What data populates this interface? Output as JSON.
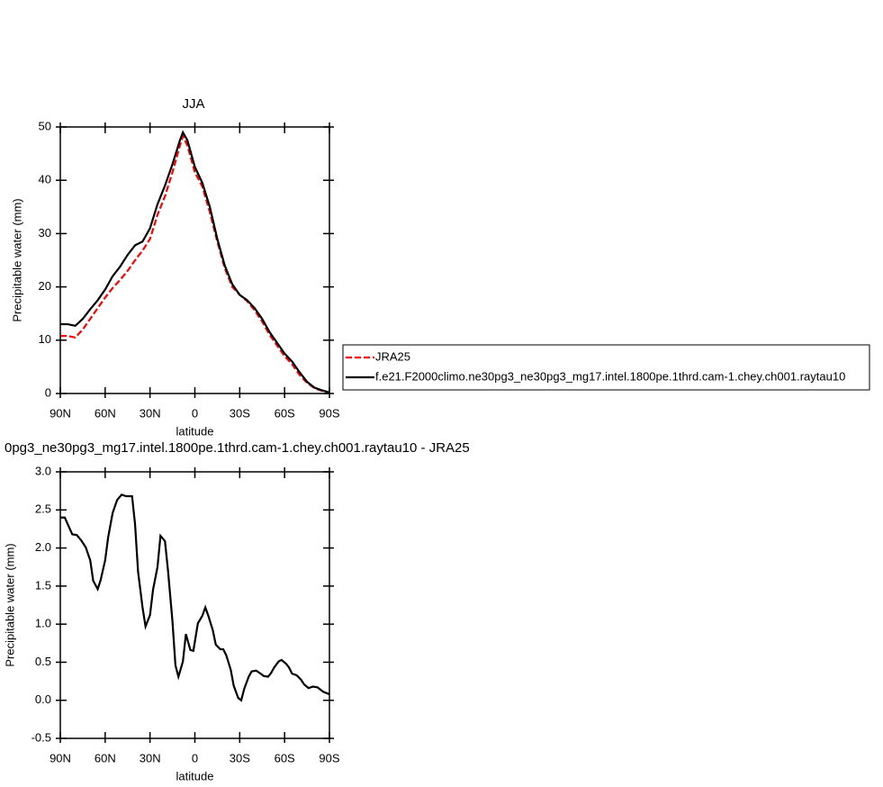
{
  "chart_data": [
    {
      "type": "line",
      "title": "JJA",
      "x_label": "latitude",
      "y_label": "Precipitable water (mm)",
      "x": [
        90,
        85,
        80,
        75,
        70,
        65,
        60,
        55,
        50,
        45,
        40,
        35,
        30,
        25,
        20,
        15,
        10,
        8,
        5,
        0,
        -5,
        -10,
        -15,
        -20,
        -25,
        -30,
        -35,
        -40,
        -45,
        -50,
        -55,
        -60,
        -65,
        -70,
        -75,
        -80,
        -85,
        -90
      ],
      "series": [
        {
          "name": "JRA25",
          "color": "#ff0000",
          "style": "dashed",
          "values": [
            10.8,
            10.8,
            10.5,
            12,
            14,
            16,
            18,
            19.8,
            21.3,
            23,
            25,
            26.8,
            29,
            33.5,
            37,
            41.5,
            46.5,
            48.3,
            46.5,
            41.5,
            38.8,
            34,
            28.5,
            23.5,
            20,
            18.5,
            17.3,
            15.6,
            13.5,
            11,
            9,
            7,
            5.5,
            3.5,
            2,
            1,
            0.5,
            0.1
          ]
        },
        {
          "name": "f.e21.F2000climo.ne30pg3_ne30pg3_mg17.intel.1800pe.1thrd.cam-1.chey.ch001.raytau10",
          "color": "#000000",
          "style": "solid",
          "values": [
            13,
            13,
            12.7,
            14,
            15.8,
            17.5,
            19.5,
            22,
            23.8,
            26,
            27.8,
            28.5,
            31,
            35.5,
            39,
            43,
            47.5,
            49,
            47.5,
            42.5,
            39.5,
            35,
            29,
            24,
            20.5,
            18.5,
            17.5,
            16,
            14,
            11.5,
            9.5,
            7.5,
            6,
            4,
            2.2,
            1.1,
            0.6,
            0.2
          ]
        }
      ],
      "xlim": [
        90,
        -90
      ],
      "xticks": [
        {
          "value": 90,
          "label": "90N"
        },
        {
          "value": 60,
          "label": "60N"
        },
        {
          "value": 30,
          "label": "30N"
        },
        0,
        {
          "value": -30,
          "label": "30S"
        },
        {
          "value": -60,
          "label": "60S"
        },
        {
          "value": -90,
          "label": "90S"
        }
      ],
      "ylim": [
        0,
        50
      ],
      "yticks": [
        0,
        10,
        20,
        30,
        40,
        50
      ],
      "legend": "right"
    },
    {
      "type": "line",
      "title": "0pg3_ne30pg3_mg17.intel.1800pe.1thrd.cam-1.chey.ch001.raytau10 - JRA25",
      "x_label": "latitude",
      "y_label": "Precipitable water (mm)",
      "x": [
        90,
        87,
        85,
        82,
        79,
        76,
        73,
        70,
        68,
        65,
        63,
        60,
        58,
        55,
        52,
        49,
        46,
        42,
        40,
        38,
        35,
        33,
        30,
        28,
        25,
        23,
        20,
        18,
        15,
        13,
        11,
        8,
        6,
        3,
        1,
        -2,
        -5,
        -7,
        -9,
        -12,
        -14,
        -17,
        -19,
        -21,
        -24,
        -26,
        -29,
        -31,
        -33,
        -36,
        -38,
        -41,
        -44,
        -46,
        -49,
        -51,
        -53,
        -56,
        -58,
        -61,
        -63,
        -65,
        -68,
        -71,
        -73,
        -76,
        -79,
        -82,
        -84,
        -86,
        -90
      ],
      "series": [
        {
          "color": "#000000",
          "style": "solid",
          "values": [
            2.4,
            2.4,
            2.31,
            2.18,
            2.17,
            2.1,
            2.01,
            1.84,
            1.57,
            1.46,
            1.58,
            1.84,
            2.14,
            2.46,
            2.63,
            2.7,
            2.68,
            2.68,
            2.31,
            1.69,
            1.22,
            0.97,
            1.12,
            1.45,
            1.75,
            2.16,
            2.09,
            1.71,
            1.04,
            0.46,
            0.31,
            0.51,
            0.87,
            0.66,
            0.65,
            1.01,
            1.11,
            1.22,
            1.11,
            0.92,
            0.73,
            0.67,
            0.67,
            0.59,
            0.4,
            0.19,
            0.03,
            0,
            0.15,
            0.31,
            0.38,
            0.39,
            0.35,
            0.32,
            0.31,
            0.36,
            0.43,
            0.51,
            0.53,
            0.48,
            0.43,
            0.35,
            0.33,
            0.27,
            0.21,
            0.16,
            0.18,
            0.17,
            0.14,
            0.11,
            0.08
          ]
        }
      ],
      "xlim": [
        90,
        -90
      ],
      "xticks": [
        {
          "value": 90,
          "label": "90N"
        },
        {
          "value": 60,
          "label": "60N"
        },
        {
          "value": 30,
          "label": "30N"
        },
        0,
        {
          "value": -30,
          "label": "30S"
        },
        {
          "value": -60,
          "label": "60S"
        },
        {
          "value": -90,
          "label": "90S"
        }
      ],
      "ylim": [
        -0.5,
        3
      ],
      "yticks": [
        -0.5,
        {
          "value": 0,
          "label": "0.0"
        },
        0.5,
        {
          "value": 1,
          "label": "1.0"
        },
        1.5,
        {
          "value": 2,
          "label": "2.0"
        },
        2.5,
        {
          "value": 3,
          "label": "3.0"
        }
      ]
    }
  ]
}
